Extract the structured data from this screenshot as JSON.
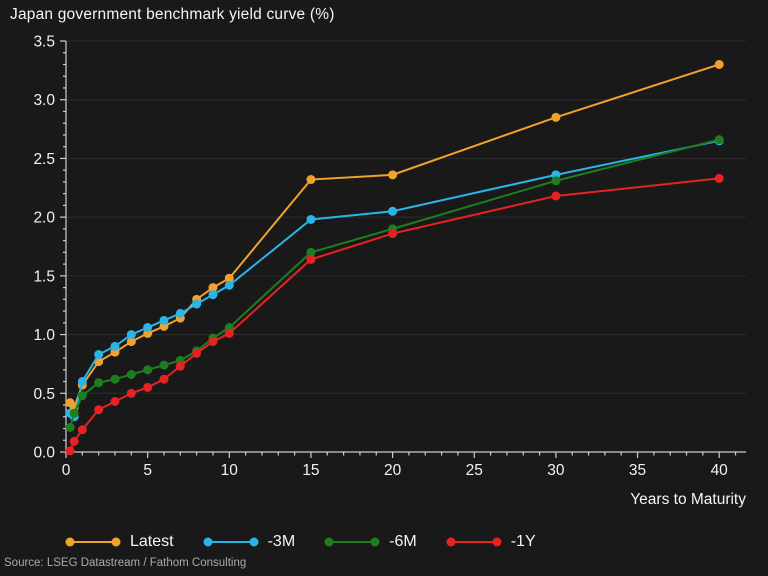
{
  "source_note": "Source: LSEG Datastream / Fathom Consulting",
  "chart_data": {
    "type": "line",
    "title": "Japan government benchmark yield curve (%)",
    "xlabel": "Years to Maturity",
    "ylabel": "",
    "xlim": [
      0,
      41.6
    ],
    "ylim": [
      0,
      3.5
    ],
    "x_ticks_major": [
      0,
      5,
      10,
      15,
      20,
      25,
      30,
      35,
      40
    ],
    "x_minor_step": 1,
    "y_ticks_major": [
      0.0,
      0.5,
      1.0,
      1.5,
      2.0,
      2.5,
      3.0,
      3.5
    ],
    "y_minor_step": 0.1,
    "grid": "horizontal",
    "legend_position": "bottom",
    "x": [
      0.25,
      0.5,
      1,
      2,
      3,
      4,
      5,
      6,
      7,
      8,
      9,
      10,
      15,
      20,
      30,
      40
    ],
    "series": [
      {
        "name": "Latest",
        "color": "#F0A22C",
        "values": [
          0.42,
          0.38,
          0.57,
          0.77,
          0.85,
          0.94,
          1.01,
          1.07,
          1.14,
          1.3,
          1.4,
          1.48,
          2.32,
          2.36,
          2.85,
          3.3
        ]
      },
      {
        "name": "-3M",
        "color": "#29B5E8",
        "values": [
          0.33,
          0.3,
          0.6,
          0.83,
          0.9,
          1.0,
          1.06,
          1.12,
          1.18,
          1.26,
          1.34,
          1.42,
          1.98,
          2.05,
          2.36,
          2.65
        ]
      },
      {
        "name": "-6M",
        "color": "#1E7D1E",
        "values": [
          0.21,
          0.33,
          0.48,
          0.59,
          0.62,
          0.66,
          0.7,
          0.74,
          0.78,
          0.86,
          0.97,
          1.06,
          1.7,
          1.9,
          2.31,
          2.66
        ]
      },
      {
        "name": "-1Y",
        "color": "#E62222",
        "values": [
          0.01,
          0.09,
          0.19,
          0.36,
          0.43,
          0.5,
          0.55,
          0.62,
          0.73,
          0.84,
          0.94,
          1.01,
          1.64,
          1.86,
          2.18,
          2.33
        ]
      }
    ],
    "colors": {
      "background": "#191919",
      "grid": "#2C2C2C",
      "axis": "#CFCFCF",
      "text": "#F2F2F2"
    }
  }
}
